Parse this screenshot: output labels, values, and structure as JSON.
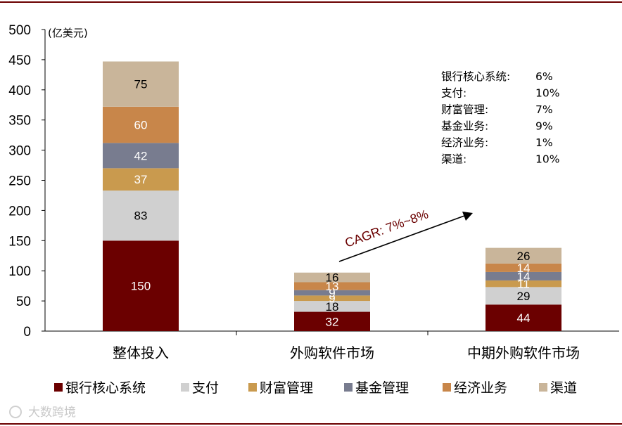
{
  "chart_data": {
    "type": "bar",
    "stacked": true,
    "ylabel": "(亿美元)",
    "ylim": [
      0,
      500
    ],
    "yticks": [
      0,
      50,
      100,
      150,
      200,
      250,
      300,
      350,
      400,
      450,
      500
    ],
    "grid": false,
    "legend_position": "bottom",
    "categories": [
      "整体投入",
      "外购软件市场",
      "中期外购软件市场"
    ],
    "series": [
      {
        "name": "银行核心系统",
        "color": "#6b0000",
        "label_color": "#ffffff",
        "values": [
          150,
          32,
          44
        ]
      },
      {
        "name": "支付",
        "color": "#d0d0d0",
        "label_color": "#000000",
        "values": [
          83,
          18,
          29
        ]
      },
      {
        "name": "财富管理",
        "color": "#c99a4e",
        "label_color": "#ffffff",
        "values": [
          37,
          9,
          11
        ]
      },
      {
        "name": "基金管理",
        "color": "#787c8f",
        "label_color": "#ffffff",
        "values": [
          42,
          9,
          14
        ]
      },
      {
        "name": "经济业务",
        "color": "#c8864a",
        "label_color": "#ffffff",
        "values": [
          60,
          13,
          14
        ]
      },
      {
        "name": "渠道",
        "color": "#c9b59a",
        "label_color": "#000000",
        "values": [
          75,
          16,
          26
        ]
      }
    ],
    "annotations": {
      "cagr_label": "CAGR: 7%~8%",
      "growth_rates": [
        {
          "name": "银行核心系统:",
          "rate": "6%"
        },
        {
          "name": "支付:",
          "rate": "10%"
        },
        {
          "name": "财富管理:",
          "rate": "7%"
        },
        {
          "name": "基金业务:",
          "rate": "9%"
        },
        {
          "name": "经济业务:",
          "rate": "1%"
        },
        {
          "name": "渠道:",
          "rate": "10%"
        }
      ]
    }
  },
  "watermark": "大数跨境"
}
